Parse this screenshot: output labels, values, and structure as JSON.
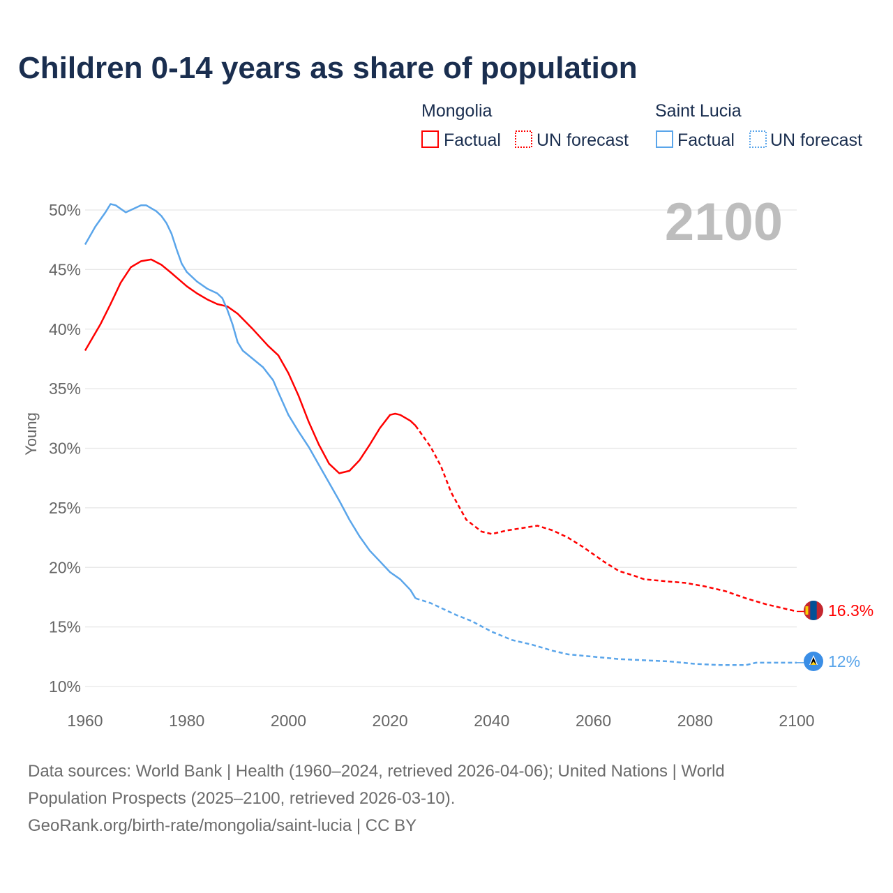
{
  "chart_data": {
    "type": "line",
    "title": "Children 0-14 years as share of population",
    "ylabel": "Young",
    "xlabel": "",
    "xlim": [
      1960,
      2100
    ],
    "ylim": [
      10,
      50
    ],
    "x_ticks": [
      "1960",
      "1980",
      "2000",
      "2020",
      "2040",
      "2060",
      "2080",
      "2100"
    ],
    "x_tick_values": [
      1960,
      1980,
      2000,
      2020,
      2040,
      2060,
      2080,
      2100
    ],
    "y_ticks": [
      "10%",
      "15%",
      "20%",
      "25%",
      "30%",
      "35%",
      "40%",
      "45%",
      "50%"
    ],
    "y_tick_values": [
      10,
      15,
      20,
      25,
      30,
      35,
      40,
      45,
      50
    ],
    "grid": true,
    "current_year": "2100",
    "legend": {
      "placement": "top-right",
      "groups": [
        {
          "country": "Mongolia",
          "factual": "Factual",
          "forecast": "UN forecast",
          "color": "#ff0000"
        },
        {
          "country": "Saint Lucia",
          "factual": "Factual",
          "forecast": "UN forecast",
          "color": "#5aa5ea"
        }
      ]
    },
    "series": [
      {
        "name": "Mongolia",
        "color": "#ff0000",
        "end_label": "16.3%",
        "factual": [
          [
            1960,
            38.2
          ],
          [
            1963,
            40.4
          ],
          [
            1965,
            42.1
          ],
          [
            1967,
            43.9
          ],
          [
            1969,
            45.2
          ],
          [
            1971,
            45.7
          ],
          [
            1973,
            45.85
          ],
          [
            1975,
            45.4
          ],
          [
            1977,
            44.7
          ],
          [
            1980,
            43.6
          ],
          [
            1982,
            43.0
          ],
          [
            1984,
            42.5
          ],
          [
            1986,
            42.1
          ],
          [
            1988,
            41.9
          ],
          [
            1990,
            41.3
          ],
          [
            1993,
            40.0
          ],
          [
            1996,
            38.6
          ],
          [
            1998,
            37.8
          ],
          [
            2000,
            36.3
          ],
          [
            2002,
            34.4
          ],
          [
            2004,
            32.2
          ],
          [
            2006,
            30.3
          ],
          [
            2008,
            28.7
          ],
          [
            2010,
            27.9
          ],
          [
            2012,
            28.1
          ],
          [
            2014,
            29.0
          ],
          [
            2016,
            30.3
          ],
          [
            2018,
            31.7
          ],
          [
            2020,
            32.8
          ],
          [
            2021,
            32.9
          ],
          [
            2022,
            32.8
          ],
          [
            2024,
            32.3
          ],
          [
            2025,
            31.9
          ]
        ],
        "forecast": [
          [
            2025,
            31.9
          ],
          [
            2028,
            30.1
          ],
          [
            2030,
            28.5
          ],
          [
            2032,
            26.3
          ],
          [
            2035,
            24.0
          ],
          [
            2038,
            23.0
          ],
          [
            2040,
            22.8
          ],
          [
            2043,
            23.1
          ],
          [
            2046,
            23.3
          ],
          [
            2049,
            23.5
          ],
          [
            2052,
            23.1
          ],
          [
            2055,
            22.5
          ],
          [
            2058,
            21.7
          ],
          [
            2062,
            20.5
          ],
          [
            2065,
            19.7
          ],
          [
            2068,
            19.3
          ],
          [
            2070,
            19.0
          ],
          [
            2075,
            18.8
          ],
          [
            2078,
            18.7
          ],
          [
            2082,
            18.4
          ],
          [
            2086,
            18.0
          ],
          [
            2090,
            17.4
          ],
          [
            2094,
            16.9
          ],
          [
            2098,
            16.5
          ],
          [
            2100,
            16.3
          ]
        ]
      },
      {
        "name": "Saint Lucia",
        "color": "#5aa5ea",
        "end_label": "12%",
        "factual": [
          [
            1960,
            47.1
          ],
          [
            1962,
            48.6
          ],
          [
            1964,
            49.8
          ],
          [
            1965,
            50.5
          ],
          [
            1966,
            50.4
          ],
          [
            1967,
            50.1
          ],
          [
            1968,
            49.8
          ],
          [
            1970,
            50.2
          ],
          [
            1971,
            50.4
          ],
          [
            1972,
            50.4
          ],
          [
            1974,
            49.9
          ],
          [
            1975,
            49.5
          ],
          [
            1976,
            48.9
          ],
          [
            1977,
            48.0
          ],
          [
            1978,
            46.7
          ],
          [
            1979,
            45.5
          ],
          [
            1980,
            44.8
          ],
          [
            1982,
            44.0
          ],
          [
            1984,
            43.4
          ],
          [
            1986,
            43.0
          ],
          [
            1987,
            42.6
          ],
          [
            1988,
            41.6
          ],
          [
            1989,
            40.4
          ],
          [
            1990,
            38.9
          ],
          [
            1991,
            38.2
          ],
          [
            1993,
            37.5
          ],
          [
            1995,
            36.8
          ],
          [
            1997,
            35.7
          ],
          [
            1998,
            34.7
          ],
          [
            2000,
            32.8
          ],
          [
            2002,
            31.4
          ],
          [
            2004,
            30.1
          ],
          [
            2006,
            28.6
          ],
          [
            2008,
            27.1
          ],
          [
            2010,
            25.6
          ],
          [
            2012,
            24.0
          ],
          [
            2014,
            22.6
          ],
          [
            2016,
            21.4
          ],
          [
            2018,
            20.5
          ],
          [
            2020,
            19.6
          ],
          [
            2022,
            19.0
          ],
          [
            2024,
            18.1
          ],
          [
            2025,
            17.4
          ]
        ],
        "forecast": [
          [
            2025,
            17.4
          ],
          [
            2028,
            17.0
          ],
          [
            2030,
            16.6
          ],
          [
            2033,
            16.0
          ],
          [
            2036,
            15.5
          ],
          [
            2040,
            14.6
          ],
          [
            2044,
            13.9
          ],
          [
            2048,
            13.5
          ],
          [
            2052,
            13.0
          ],
          [
            2055,
            12.7
          ],
          [
            2060,
            12.5
          ],
          [
            2065,
            12.3
          ],
          [
            2070,
            12.2
          ],
          [
            2075,
            12.1
          ],
          [
            2080,
            11.9
          ],
          [
            2085,
            11.8
          ],
          [
            2090,
            11.8
          ],
          [
            2092,
            12.0
          ],
          [
            2096,
            12.0
          ],
          [
            2100,
            12.0
          ]
        ]
      }
    ]
  },
  "footer": {
    "line1": "Data sources: World Bank | Health (1960–2024, retrieved 2026-04-06); United Nations | World",
    "line2": "Population Prospects (2025–2100, retrieved 2026-03-10).",
    "line3": "GeoRank.org/birth-rate/mongolia/saint-lucia | CC BY"
  }
}
